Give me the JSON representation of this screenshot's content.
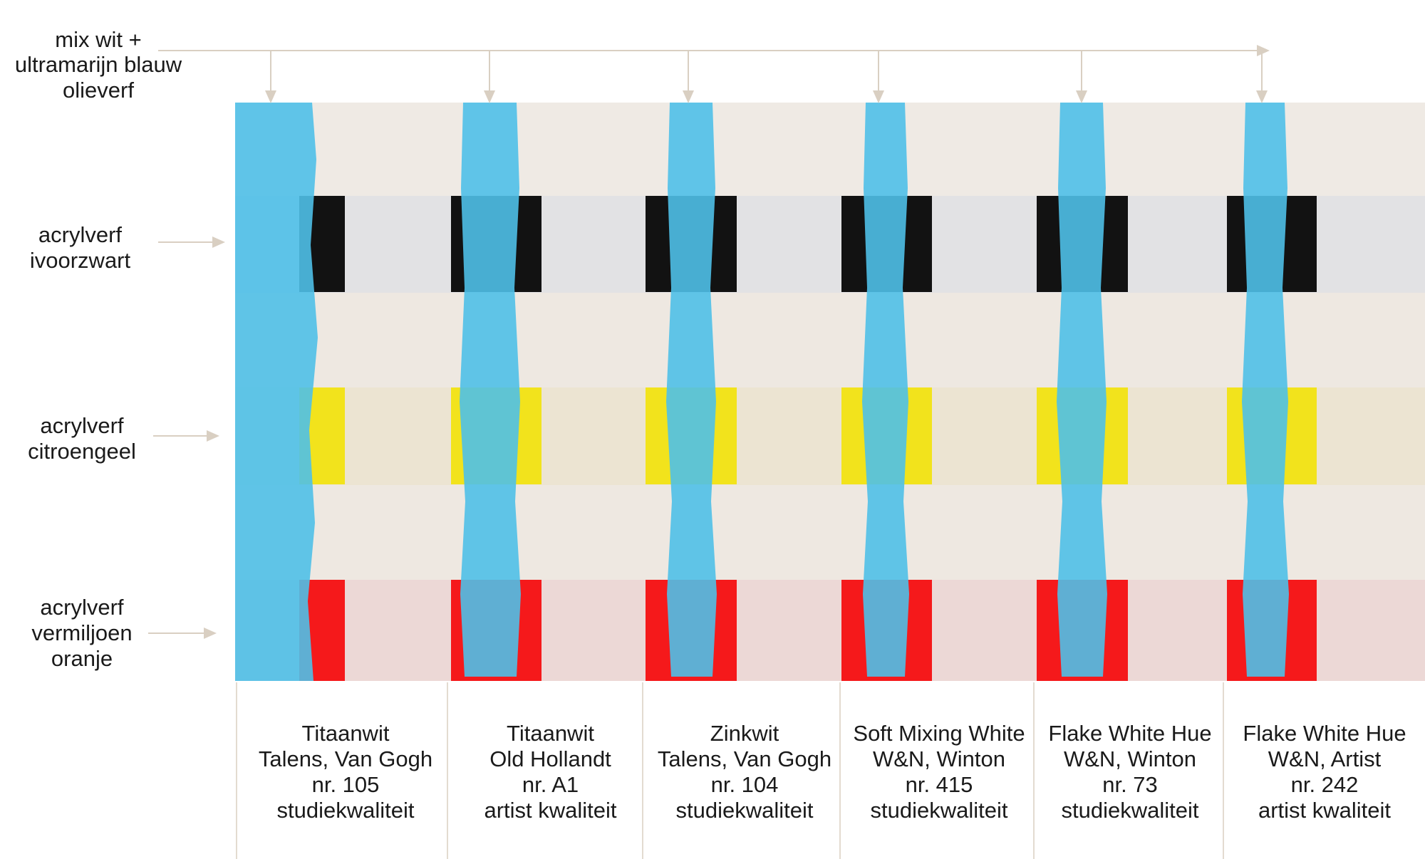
{
  "top_label": {
    "lines": [
      "mix wit +",
      "ultramarijn blauw",
      "olieverf"
    ]
  },
  "row_labels": [
    {
      "line1": "acrylverf",
      "line2": "ivoorzwart",
      "line3": ""
    },
    {
      "line1": "acrylverf",
      "line2": "citroengeel",
      "line3": ""
    },
    {
      "line1": "acrylverf",
      "line2": "vermiljoen",
      "line3": "oranje"
    }
  ],
  "columns": [
    {
      "name": "Titaanwit",
      "brand": "Talens, Van Gogh",
      "number": "nr. 105",
      "quality": "studiekwaliteit"
    },
    {
      "name": "Titaanwit",
      "brand": "Old Hollandt",
      "number": "nr. A1",
      "quality": "artist kwaliteit"
    },
    {
      "name": "Zinkwit",
      "brand": "Talens, Van Gogh",
      "number": "nr. 104",
      "quality": "studiekwaliteit"
    },
    {
      "name": "Soft Mixing White",
      "brand": "W&N, Winton",
      "number": "nr. 415",
      "quality": "studiekwaliteit"
    },
    {
      "name": "Flake White Hue",
      "brand": "W&N, Winton",
      "number": "nr. 73",
      "quality": "studiekwaliteit"
    },
    {
      "name": "Flake White Hue",
      "brand": "W&N, Artist",
      "number": "nr. 242",
      "quality": "artist kwaliteit"
    }
  ],
  "colors": {
    "canvas": "#ece6df",
    "canvas_white": "#f1ece6",
    "ivory_black": "#121212",
    "lemon_yellow": "#f2e31c",
    "vermilion": "#f5191b",
    "ultramarine_mix": "#4fc0e8",
    "arrow": "#d9cfc2",
    "divider": "#e3dbd0"
  }
}
